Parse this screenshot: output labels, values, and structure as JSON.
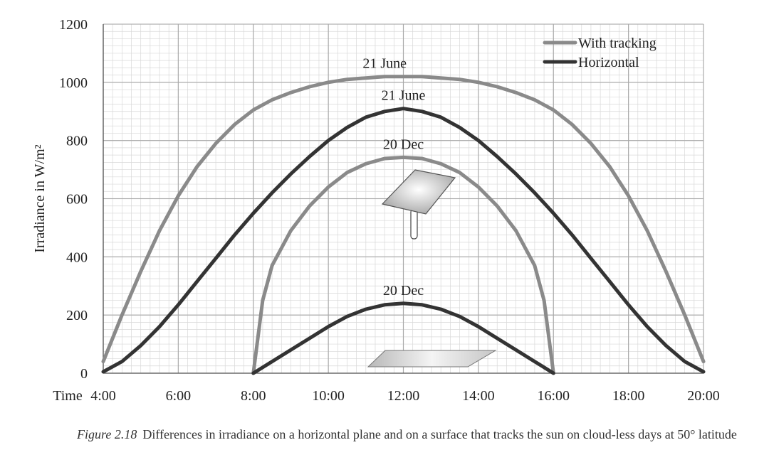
{
  "chart_data": {
    "type": "line",
    "ylabel": "Irradiance in W/m²",
    "xlabel": "Time",
    "x_ticks": [
      "4:00",
      "6:00",
      "8:00",
      "10:00",
      "12:00",
      "14:00",
      "16:00",
      "18:00",
      "20:00"
    ],
    "y_ticks": [
      "0",
      "200",
      "400",
      "600",
      "800",
      "1000",
      "1200"
    ],
    "ylim": [
      0,
      1200
    ],
    "xlim": [
      4,
      20
    ],
    "grid": true,
    "legend_position": "top-right",
    "legend": [
      {
        "label": "With tracking",
        "color": "#8a8a8a"
      },
      {
        "label": "Horizontal",
        "color": "#333333"
      }
    ],
    "series": [
      {
        "name": "With tracking",
        "color": "#8a8a8a",
        "annotation": "21 June",
        "x": [
          4,
          4.5,
          5,
          5.5,
          6,
          6.5,
          7,
          7.5,
          8,
          8.5,
          9,
          9.5,
          10,
          10.5,
          11,
          11.5,
          12,
          12.5,
          13,
          13.5,
          14,
          14.5,
          15,
          15.5,
          16,
          16.5,
          17,
          17.5,
          18,
          18.5,
          19,
          19.5,
          20
        ],
        "y": [
          40,
          200,
          350,
          490,
          610,
          710,
          790,
          855,
          905,
          940,
          965,
          985,
          1000,
          1010,
          1015,
          1020,
          1020,
          1020,
          1015,
          1010,
          1000,
          985,
          965,
          940,
          905,
          855,
          790,
          710,
          610,
          490,
          350,
          200,
          40
        ]
      },
      {
        "name": "Horizontal",
        "color": "#333333",
        "annotation": "21 June",
        "x": [
          4,
          4.5,
          5,
          5.5,
          6,
          6.5,
          7,
          7.5,
          8,
          8.5,
          9,
          9.5,
          10,
          10.5,
          11,
          11.5,
          12,
          12.5,
          13,
          13.5,
          14,
          14.5,
          15,
          15.5,
          16,
          16.5,
          17,
          17.5,
          18,
          18.5,
          19,
          19.5,
          20
        ],
        "y": [
          5,
          40,
          95,
          160,
          235,
          315,
          395,
          475,
          550,
          620,
          685,
          745,
          800,
          845,
          880,
          900,
          910,
          900,
          880,
          845,
          800,
          745,
          685,
          620,
          550,
          475,
          395,
          315,
          235,
          160,
          95,
          40,
          5
        ]
      },
      {
        "name": "With tracking",
        "color": "#8a8a8a",
        "annotation": "20 Dec",
        "x": [
          8,
          8.25,
          8.5,
          9,
          9.5,
          10,
          10.5,
          11,
          11.5,
          12,
          12.5,
          13,
          13.5,
          14,
          14.5,
          15,
          15.5,
          15.75,
          16
        ],
        "y": [
          0,
          250,
          370,
          490,
          575,
          640,
          690,
          720,
          738,
          742,
          738,
          720,
          690,
          640,
          575,
          490,
          370,
          250,
          0
        ]
      },
      {
        "name": "Horizontal",
        "color": "#333333",
        "annotation": "20 Dec",
        "x": [
          8,
          8.5,
          9,
          9.5,
          10,
          10.5,
          11,
          11.5,
          12,
          12.5,
          13,
          13.5,
          14,
          14.5,
          15,
          15.5,
          16
        ],
        "y": [
          0,
          40,
          80,
          120,
          160,
          195,
          220,
          235,
          240,
          235,
          220,
          195,
          160,
          120,
          80,
          40,
          0
        ]
      }
    ]
  },
  "caption": {
    "figure_label": "Figure 2.18",
    "text": "Differences in irradiance on a horizontal plane and on a surface that tracks the sun on cloud-less days at 50° latitude"
  }
}
